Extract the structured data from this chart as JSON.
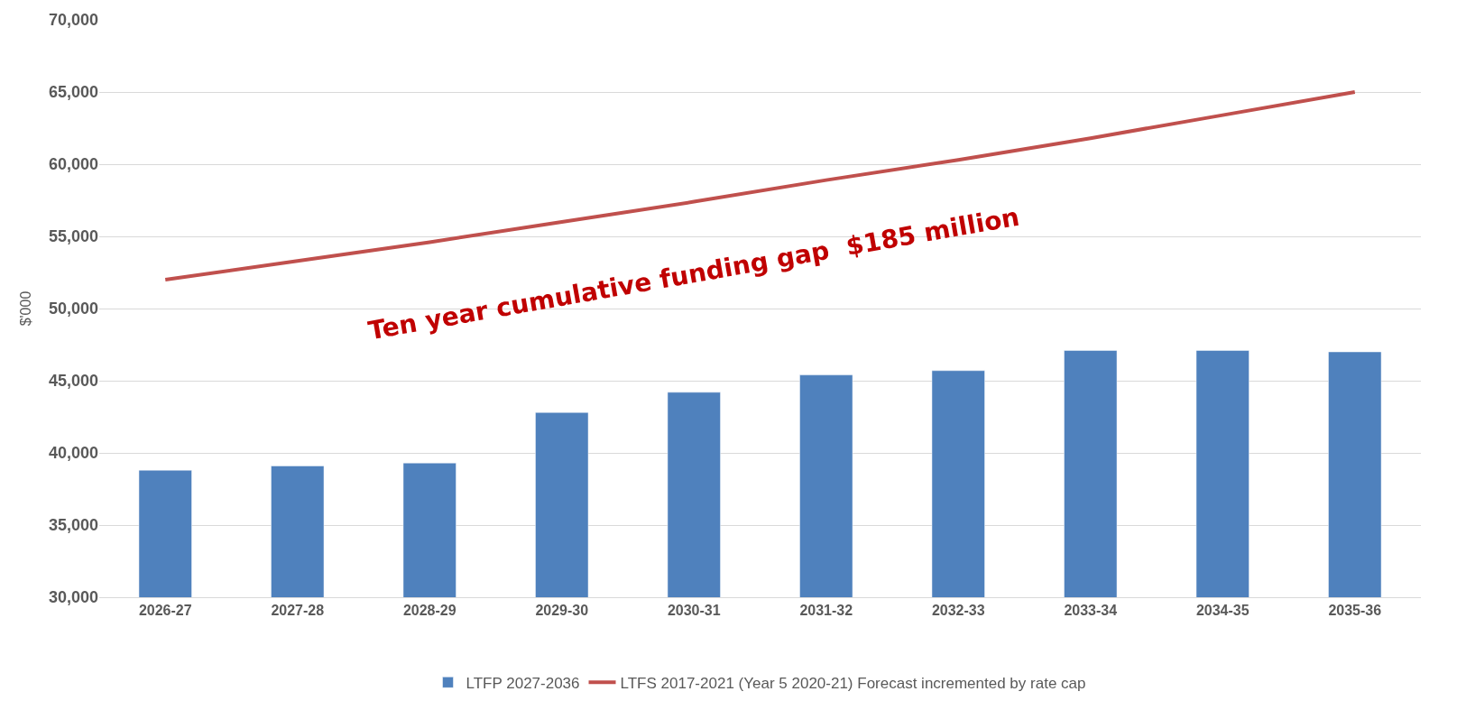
{
  "chart_data": {
    "type": "bar",
    "ylabel": "$'000",
    "categories": [
      "2026-27",
      "2027-28",
      "2028-29",
      "2029-30",
      "2030-31",
      "2031-32",
      "2032-33",
      "2033-34",
      "2034-35",
      "2035-36"
    ],
    "series": [
      {
        "name": "LTFP 2027-2036",
        "color": "#4f81bd",
        "values": [
          38800,
          39100,
          39300,
          42800,
          44200,
          45400,
          45700,
          47100,
          47100,
          47000
        ]
      },
      {
        "name": "LTFS 2017-2021 (Year 5 2020-21) Forecast incremented by rate cap",
        "color": "#c0504d",
        "type": "line",
        "values": [
          52000,
          53300,
          54600,
          56000,
          57400,
          58900,
          60300,
          61800,
          63400,
          65000
        ]
      }
    ],
    "ylim": [
      30000,
      70000
    ],
    "yticks": [
      {
        "value": 30000,
        "label": "30,000"
      },
      {
        "value": 35000,
        "label": "35,000"
      },
      {
        "value": 40000,
        "label": "40,000"
      },
      {
        "value": 45000,
        "label": "45,000"
      },
      {
        "value": 50000,
        "label": "50,000"
      },
      {
        "value": 55000,
        "label": "55,000"
      },
      {
        "value": 60000,
        "label": "60,000"
      },
      {
        "value": 65000,
        "label": "65,000"
      },
      {
        "value": 70000,
        "label": "70,000"
      }
    ],
    "grid": "y",
    "legend": "bottom",
    "marker": "none",
    "annotations": [
      "Ten year cumulative funding gap  $185 million"
    ]
  }
}
